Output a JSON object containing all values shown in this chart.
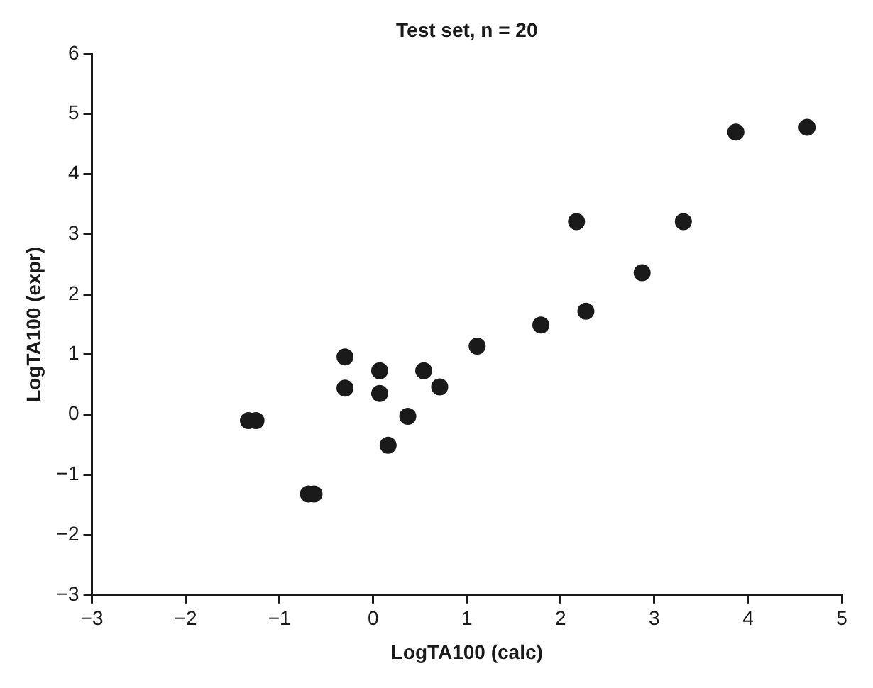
{
  "chart_data": {
    "type": "scatter",
    "title": "Test set, n = 20",
    "xlabel": "LogTA100 (calc)",
    "ylabel": "LogTA100 (expr)",
    "x": [
      -1.33,
      -1.25,
      -0.69,
      -0.63,
      -0.3,
      -0.3,
      0.07,
      0.07,
      0.16,
      0.37,
      0.54,
      0.71,
      1.11,
      1.79,
      2.27,
      2.17,
      2.87,
      3.31,
      3.87,
      4.63
    ],
    "series": [
      {
        "color": "#1a1a1a",
        "values": [
          -0.1,
          -0.1,
          -1.32,
          -1.32,
          0.96,
          0.44,
          0.73,
          0.35,
          -0.51,
          -0.03,
          0.73,
          0.46,
          1.14,
          1.49,
          1.72,
          3.21,
          2.36,
          3.21,
          4.7,
          4.78
        ]
      }
    ],
    "xlim": [
      -3,
      5
    ],
    "xticks": [
      -3,
      -2,
      -1,
      0,
      1,
      2,
      3,
      4,
      5
    ],
    "ylim": [
      -3,
      6
    ],
    "yticks": [
      -3,
      -2,
      -1,
      0,
      1,
      2,
      3,
      4,
      5,
      6
    ],
    "grid": false,
    "legend": false,
    "marker": "circle"
  }
}
